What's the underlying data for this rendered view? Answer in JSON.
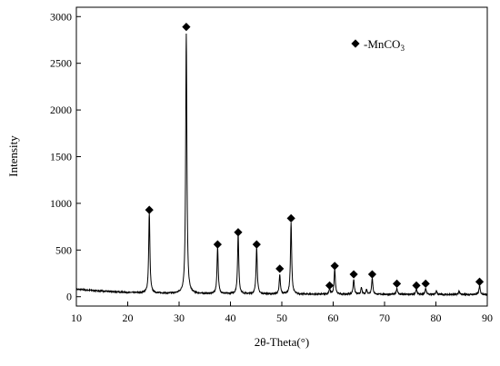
{
  "chart_data": {
    "type": "line",
    "xlabel": "2θ-Theta(°)",
    "ylabel": "Intensity",
    "xlim": [
      10,
      90
    ],
    "ylim": [
      -100,
      3100
    ],
    "x_ticks": [
      10,
      20,
      30,
      40,
      50,
      60,
      70,
      80,
      90
    ],
    "y_ticks": [
      0,
      500,
      1000,
      1500,
      2000,
      2500,
      3000
    ],
    "grid": false,
    "legend": {
      "placement": "top-right",
      "marker": "◆",
      "label_prefix": "-MnCO",
      "label_subscript": "3"
    },
    "series": [
      {
        "color": "#000000",
        "baseline": [
          [
            10,
            80
          ],
          [
            15,
            60
          ],
          [
            20,
            45
          ],
          [
            25,
            38
          ],
          [
            30,
            34
          ],
          [
            40,
            30
          ],
          [
            50,
            28
          ],
          [
            60,
            26
          ],
          [
            70,
            25
          ],
          [
            80,
            24
          ],
          [
            90,
            24
          ]
        ],
        "peaks": [
          {
            "x": 24.2,
            "y": 860
          },
          {
            "x": 31.4,
            "y": 2780
          },
          {
            "x": 37.5,
            "y": 500
          },
          {
            "x": 41.5,
            "y": 640
          },
          {
            "x": 45.1,
            "y": 500
          },
          {
            "x": 49.6,
            "y": 200
          },
          {
            "x": 51.8,
            "y": 760
          },
          {
            "x": 59.3,
            "y": 60
          },
          {
            "x": 60.3,
            "y": 270
          },
          {
            "x": 64.0,
            "y": 160
          },
          {
            "x": 65.5,
            "y": 70
          },
          {
            "x": 66.5,
            "y": 50
          },
          {
            "x": 67.6,
            "y": 175
          },
          {
            "x": 72.4,
            "y": 65
          },
          {
            "x": 76.2,
            "y": 55
          },
          {
            "x": 78.0,
            "y": 65
          },
          {
            "x": 80.1,
            "y": 40
          },
          {
            "x": 84.5,
            "y": 35
          },
          {
            "x": 88.5,
            "y": 95
          }
        ]
      }
    ],
    "annotations": [
      {
        "symbol": "◆",
        "x": 24.2,
        "y": 930
      },
      {
        "symbol": "◆",
        "x": 31.4,
        "y": 2890
      },
      {
        "symbol": "◆",
        "x": 37.5,
        "y": 560
      },
      {
        "symbol": "◆",
        "x": 41.5,
        "y": 690
      },
      {
        "symbol": "◆",
        "x": 45.1,
        "y": 560
      },
      {
        "symbol": "◆",
        "x": 49.6,
        "y": 300
      },
      {
        "symbol": "◆",
        "x": 51.8,
        "y": 840
      },
      {
        "symbol": "◆",
        "x": 59.3,
        "y": 120
      },
      {
        "symbol": "◆",
        "x": 60.3,
        "y": 330
      },
      {
        "symbol": "◆",
        "x": 64.0,
        "y": 240
      },
      {
        "symbol": "◆",
        "x": 67.6,
        "y": 240
      },
      {
        "symbol": "◆",
        "x": 72.4,
        "y": 140
      },
      {
        "symbol": "◆",
        "x": 76.2,
        "y": 120
      },
      {
        "symbol": "◆",
        "x": 78.0,
        "y": 140
      },
      {
        "symbol": "◆",
        "x": 88.5,
        "y": 160
      }
    ]
  }
}
